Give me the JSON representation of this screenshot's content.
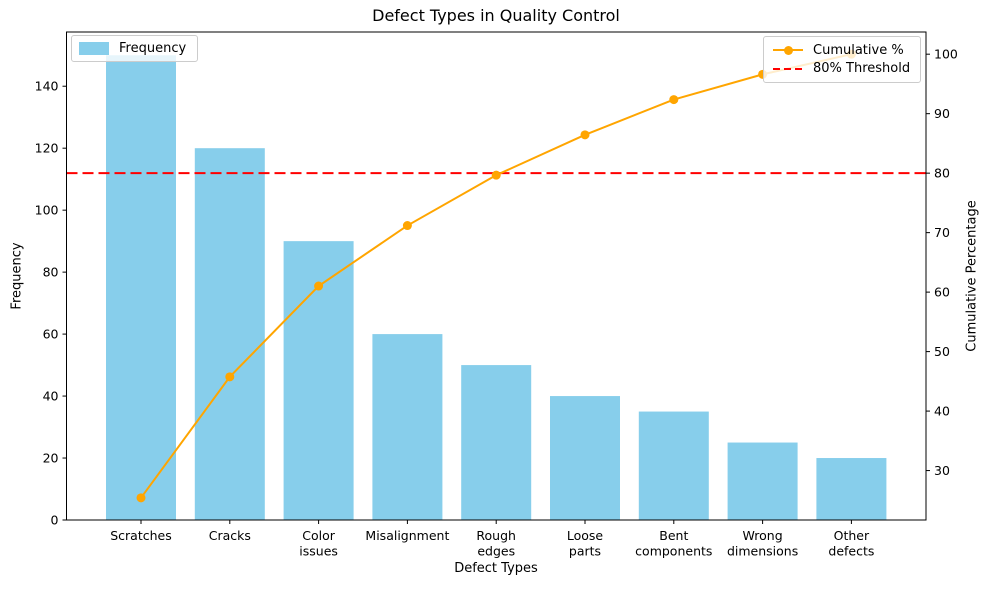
{
  "figure": {
    "title": "Defect Types in Quality Control"
  },
  "chart_data": {
    "type": "bar",
    "subtype": "pareto",
    "title": "Defect Types in Quality Control",
    "xlabel": "Defect Types",
    "ylabel_left": "Frequency",
    "ylabel_right": "Cumulative Percentage",
    "grid": false,
    "categories": [
      "Scratches",
      "Cracks",
      "Color issues",
      "Misalignment",
      "Rough edges",
      "Loose parts",
      "Bent components",
      "Wrong dimensions",
      "Other defects"
    ],
    "tick_label_lines": [
      [
        "Scratches"
      ],
      [
        "Cracks"
      ],
      [
        "Color",
        "issues"
      ],
      [
        "Misalignment"
      ],
      [
        "Rough",
        "edges"
      ],
      [
        "Loose",
        "parts"
      ],
      [
        "Bent",
        "components"
      ],
      [
        "Wrong",
        "dimensions"
      ],
      [
        "Other",
        "defects"
      ]
    ],
    "series": [
      {
        "name": "Frequency",
        "type": "bar",
        "axis": "left",
        "color": "#87CEEB",
        "values": [
          150,
          120,
          90,
          60,
          50,
          40,
          35,
          25,
          20
        ]
      },
      {
        "name": "Cumulative %",
        "type": "line",
        "axis": "right",
        "color": "#FFA500",
        "marker": "circle",
        "values": [
          25.42,
          45.76,
          61.02,
          71.19,
          79.66,
          86.44,
          92.37,
          96.61,
          100.0
        ]
      }
    ],
    "threshold": {
      "label": "80% Threshold",
      "value": 80,
      "axis": "right",
      "color": "#FF0000",
      "style": "dashed"
    },
    "axes": {
      "left": {
        "label": "Frequency",
        "ticks": [
          0,
          20,
          40,
          60,
          80,
          100,
          120,
          140
        ],
        "lim": [
          0,
          157.5
        ]
      },
      "right": {
        "label": "Cumulative Percentage",
        "ticks": [
          30,
          40,
          50,
          60,
          70,
          80,
          90,
          100
        ],
        "lim": [
          21.69,
          103.73
        ]
      }
    },
    "legend_left": {
      "position": "upper left",
      "entries": [
        {
          "label": "Frequency",
          "swatch": "bar"
        }
      ]
    },
    "legend_right": {
      "position": "upper right",
      "entries": [
        {
          "label": "Cumulative %",
          "swatch": "line"
        },
        {
          "label": "80% Threshold",
          "swatch": "dashed"
        }
      ]
    }
  }
}
